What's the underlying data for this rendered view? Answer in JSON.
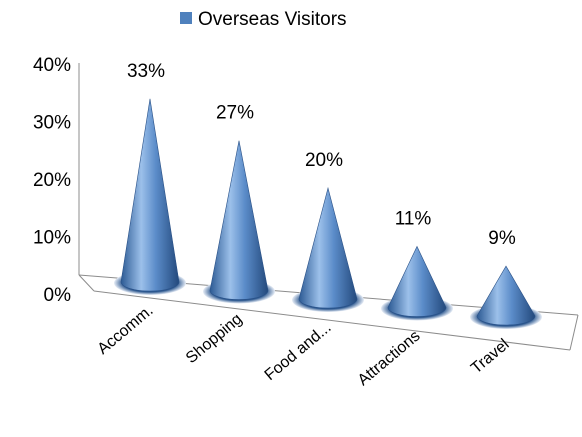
{
  "chart_data": {
    "type": "bar",
    "style": "3d-cone",
    "categories": [
      "Accomm.",
      "Shopping",
      "Food and...",
      "Attractions",
      "Travel"
    ],
    "series": [
      {
        "name": "Overseas Visitors",
        "values": [
          33,
          27,
          20,
          11,
          9
        ],
        "color": "#4f81bd"
      }
    ],
    "data_labels": [
      "33%",
      "27%",
      "20%",
      "11%",
      "9%"
    ],
    "yticks": [
      0,
      10,
      20,
      30,
      40
    ],
    "ytick_labels": [
      "0%",
      "10%",
      "20%",
      "30%",
      "40%"
    ],
    "ylim": [
      0,
      40
    ],
    "legend_position": "top",
    "grid": false
  }
}
